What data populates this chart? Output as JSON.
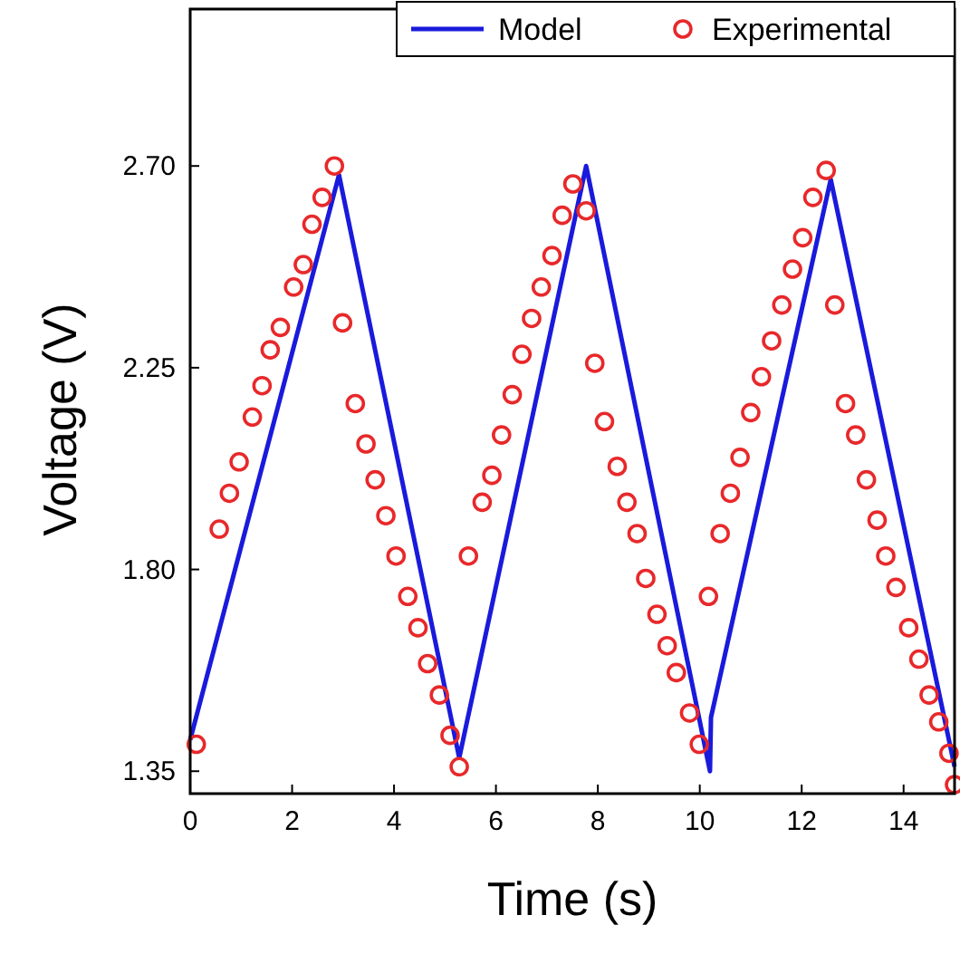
{
  "chart_data": {
    "type": "line",
    "xlabel": "Time (s)",
    "ylabel": "Voltage (V)",
    "xlim": [
      0,
      15
    ],
    "ylim": [
      1.3,
      3.05
    ],
    "xticks": [
      0,
      2,
      4,
      6,
      8,
      10,
      12,
      14
    ],
    "yticks": [
      1.35,
      {
        "value": 1.8,
        "label": "1.80"
      },
      2.25,
      {
        "value": 2.7,
        "label": "2.70"
      }
    ],
    "grid": false,
    "legend": "top right",
    "series": [
      {
        "name": "Model",
        "color": "#1a1adc",
        "line_style": "solid",
        "x": [
          0,
          2.92,
          5.28,
          7.77,
          10.2,
          10.22,
          12.57,
          15
        ],
        "values": [
          1.42,
          2.68,
          1.38,
          2.7,
          1.35,
          1.47,
          2.67,
          1.36
        ]
      },
      {
        "name": "Experimental",
        "type": "scatter",
        "color": "#e8282a",
        "marker": "circle",
        "x": [
          0.12,
          0.57,
          0.77,
          0.96,
          1.22,
          1.41,
          1.57,
          1.77,
          2.03,
          2.22,
          2.39,
          2.59,
          2.83,
          2.99,
          3.24,
          3.45,
          3.63,
          3.84,
          4.04,
          4.27,
          4.47,
          4.66,
          4.89,
          5.1,
          5.28,
          5.46,
          5.73,
          5.92,
          6.11,
          6.32,
          6.51,
          6.7,
          6.89,
          7.1,
          7.3,
          7.51,
          7.77,
          7.94,
          8.13,
          8.38,
          8.57,
          8.77,
          8.94,
          9.16,
          9.36,
          9.54,
          9.8,
          9.99,
          10.17,
          10.4,
          10.6,
          10.79,
          11,
          11.21,
          11.41,
          11.61,
          11.82,
          12.02,
          12.22,
          12.48,
          12.65,
          12.86,
          13.06,
          13.27,
          13.48,
          13.65,
          13.85,
          14.1,
          14.3,
          14.5,
          14.69,
          14.89,
          15
        ],
        "values": [
          1.41,
          1.89,
          1.97,
          2.04,
          2.14,
          2.21,
          2.29,
          2.34,
          2.43,
          2.48,
          2.57,
          2.63,
          2.7,
          2.35,
          2.17,
          2.08,
          2,
          1.92,
          1.83,
          1.74,
          1.67,
          1.59,
          1.52,
          1.43,
          1.36,
          1.83,
          1.95,
          2.01,
          2.1,
          2.19,
          2.28,
          2.36,
          2.43,
          2.5,
          2.59,
          2.66,
          2.6,
          2.26,
          2.13,
          2.03,
          1.95,
          1.88,
          1.78,
          1.7,
          1.63,
          1.57,
          1.48,
          1.41,
          1.74,
          1.88,
          1.97,
          2.05,
          2.15,
          2.23,
          2.31,
          2.39,
          2.47,
          2.54,
          2.63,
          2.69,
          2.39,
          2.17,
          2.1,
          2,
          1.91,
          1.83,
          1.76,
          1.67,
          1.6,
          1.52,
          1.46,
          1.39,
          1.32
        ]
      }
    ]
  }
}
